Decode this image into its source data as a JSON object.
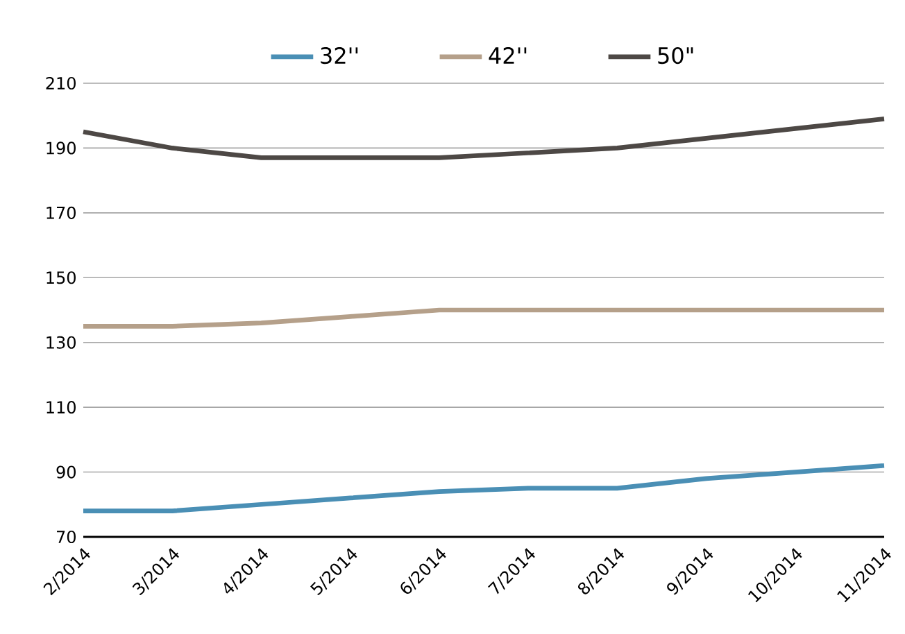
{
  "chart_data": {
    "type": "line",
    "categories": [
      "2/2014",
      "3/2014",
      "4/2014",
      "5/2014",
      "6/2014",
      "7/2014",
      "8/2014",
      "9/2014",
      "10/2014",
      "11/2014"
    ],
    "series": [
      {
        "name": "32''",
        "color": "#4a8fb5",
        "values": [
          78,
          78,
          80,
          82,
          84,
          85,
          85,
          88,
          90,
          92
        ]
      },
      {
        "name": "42''",
        "color": "#b5a08a",
        "values": [
          135,
          135,
          136,
          138,
          140,
          140,
          140,
          140,
          140,
          140
        ]
      },
      {
        "name": "50\"",
        "color": "#4d4845",
        "values": [
          195,
          190,
          187,
          187,
          187,
          188.5,
          190,
          193,
          196,
          199
        ]
      }
    ],
    "ylim": [
      70,
      210
    ],
    "yticks": [
      70,
      90,
      110,
      130,
      150,
      170,
      190,
      210
    ],
    "grid": "y",
    "legend": "top",
    "marker": "none",
    "line_style": "solid"
  }
}
